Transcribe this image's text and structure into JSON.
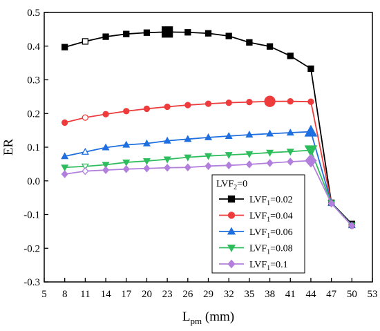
{
  "chart_data": {
    "type": "line",
    "xlabel": {
      "main": "L",
      "sub": "pm",
      "rest": " (mm)"
    },
    "ylabel": "ER",
    "xlim": [
      5,
      53
    ],
    "ylim": [
      -0.3,
      0.5
    ],
    "xticks": [
      "5",
      "8",
      "11",
      "14",
      "17",
      "20",
      "23",
      "26",
      "29",
      "32",
      "35",
      "38",
      "41",
      "44",
      "47",
      "50",
      "53"
    ],
    "yticks": [
      "-0.3",
      "-0.2",
      "-0.1",
      "0.0",
      "0.1",
      "0.2",
      "0.3",
      "0.4",
      "0.5"
    ],
    "x": [
      8,
      11,
      14,
      17,
      20,
      23,
      26,
      29,
      32,
      35,
      38,
      41,
      44,
      47,
      50
    ],
    "legend": {
      "title": {
        "main": "LVF",
        "sub": "2",
        "rest": "=0"
      },
      "position": "lower-right"
    },
    "series": [
      {
        "name": "LVF1=0.02",
        "label": {
          "main": "LVF",
          "sub": "1",
          "rest": "=0.02"
        },
        "color": "#000000",
        "marker": "square",
        "values": [
          0.397,
          0.414,
          0.428,
          0.436,
          0.44,
          0.442,
          0.441,
          0.438,
          0.43,
          0.411,
          0.399,
          0.371,
          0.333,
          -0.065,
          -0.128
        ],
        "open_index": 1,
        "big_index": 5
      },
      {
        "name": "LVF1=0.04",
        "label": {
          "main": "LVF",
          "sub": "1",
          "rest": "=0.04"
        },
        "color": "#ee3b3b",
        "marker": "circle",
        "values": [
          0.173,
          0.188,
          0.198,
          0.207,
          0.214,
          0.22,
          0.225,
          0.229,
          0.232,
          0.234,
          0.236,
          0.236,
          0.235,
          -0.066,
          -0.133
        ],
        "open_index": 1,
        "big_index": 10
      },
      {
        "name": "LVF1=0.06",
        "label": {
          "main": "LVF",
          "sub": "1",
          "rest": "=0.06"
        },
        "color": "#1f6fe0",
        "marker": "triangle-up",
        "values": [
          0.073,
          0.086,
          0.099,
          0.107,
          0.111,
          0.119,
          0.124,
          0.129,
          0.133,
          0.137,
          0.14,
          0.143,
          0.146,
          -0.066,
          -0.132
        ],
        "open_index": 1,
        "big_index": 12
      },
      {
        "name": "LVF1=0.08",
        "label": {
          "main": "LVF",
          "sub": "1",
          "rest": "=0.08"
        },
        "color": "#2ebd5c",
        "marker": "triangle-down",
        "values": [
          0.04,
          0.043,
          0.048,
          0.055,
          0.059,
          0.064,
          0.07,
          0.074,
          0.077,
          0.08,
          0.084,
          0.087,
          0.091,
          -0.066,
          -0.132
        ],
        "open_index": 1,
        "big_index": 12
      },
      {
        "name": "LVF1=0.1",
        "label": {
          "main": "LVF",
          "sub": "1",
          "rest": "=0.1"
        },
        "color": "#b37fdd",
        "marker": "diamond",
        "values": [
          0.02,
          0.029,
          0.032,
          0.035,
          0.037,
          0.039,
          0.04,
          0.044,
          0.046,
          0.049,
          0.053,
          0.057,
          0.06,
          -0.067,
          -0.133
        ],
        "open_index": 1,
        "big_index": 12
      }
    ],
    "grid": false
  }
}
